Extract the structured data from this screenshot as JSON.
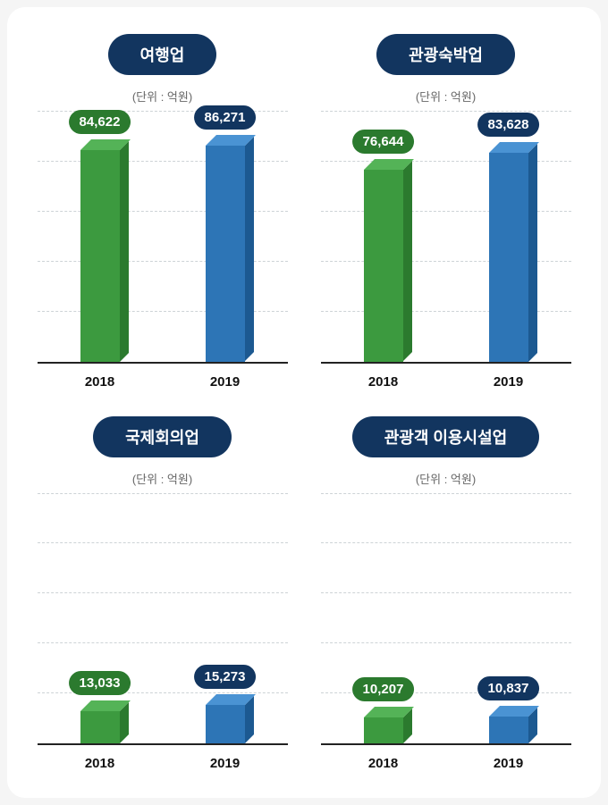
{
  "charts": [
    {
      "title": "여행업",
      "unit": "(단위 : 억원)",
      "title_bg": "#12355f",
      "ymax": 100000,
      "bars": [
        {
          "year": "2018",
          "value": 84622,
          "label": "84,622",
          "front": "#3c9a3f",
          "top": "#54b357",
          "side": "#2b7a2e",
          "pill": "#2b7a2e"
        },
        {
          "year": "2019",
          "value": 86271,
          "label": "86,271",
          "front": "#2d75b6",
          "top": "#4a93d3",
          "side": "#1c5991",
          "pill": "#12355f"
        }
      ],
      "gridlines": 5,
      "grid_color": "#cdd3d6",
      "axis_color": "#222222"
    },
    {
      "title": "관광숙박업",
      "unit": "(단위 : 억원)",
      "title_bg": "#12355f",
      "ymax": 100000,
      "bars": [
        {
          "year": "2018",
          "value": 76644,
          "label": "76,644",
          "front": "#3c9a3f",
          "top": "#54b357",
          "side": "#2b7a2e",
          "pill": "#2b7a2e"
        },
        {
          "year": "2019",
          "value": 83628,
          "label": "83,628",
          "front": "#2d75b6",
          "top": "#4a93d3",
          "side": "#1c5991",
          "pill": "#12355f"
        }
      ],
      "gridlines": 5,
      "grid_color": "#cdd3d6",
      "axis_color": "#222222"
    },
    {
      "title": "국제회의업",
      "unit": "(단위 : 억원)",
      "title_bg": "#12355f",
      "ymax": 100000,
      "bars": [
        {
          "year": "2018",
          "value": 13033,
          "label": "13,033",
          "front": "#3c9a3f",
          "top": "#54b357",
          "side": "#2b7a2e",
          "pill": "#2b7a2e"
        },
        {
          "year": "2019",
          "value": 15273,
          "label": "15,273",
          "front": "#2d75b6",
          "top": "#4a93d3",
          "side": "#1c5991",
          "pill": "#12355f"
        }
      ],
      "gridlines": 5,
      "grid_color": "#cdd3d6",
      "axis_color": "#222222"
    },
    {
      "title": "관광객 이용시설업",
      "unit": "(단위 : 억원)",
      "title_bg": "#12355f",
      "ymax": 100000,
      "bars": [
        {
          "year": "2018",
          "value": 10207,
          "label": "10,207",
          "front": "#3c9a3f",
          "top": "#54b357",
          "side": "#2b7a2e",
          "pill": "#2b7a2e"
        },
        {
          "year": "2019",
          "value": 10837,
          "label": "10,837",
          "front": "#2d75b6",
          "top": "#4a93d3",
          "side": "#1c5991",
          "pill": "#12355f"
        }
      ],
      "gridlines": 5,
      "grid_color": "#cdd3d6",
      "axis_color": "#222222"
    }
  ]
}
